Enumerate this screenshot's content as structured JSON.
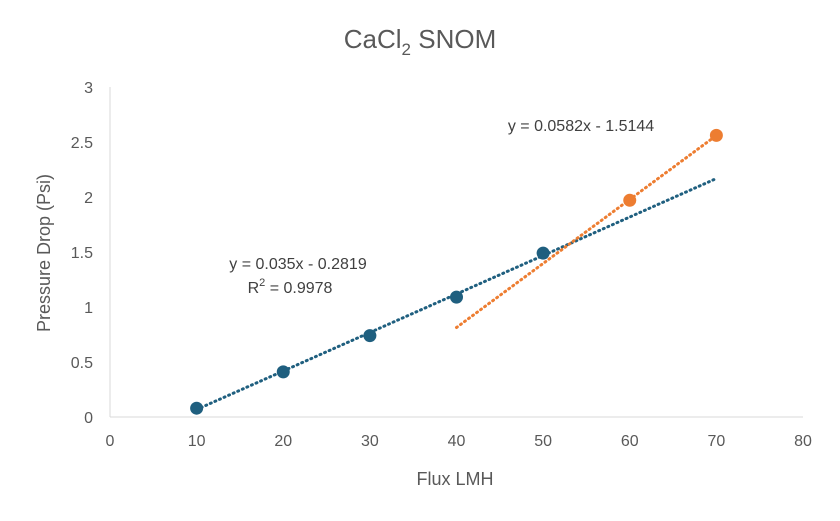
{
  "chart_data": {
    "type": "scatter",
    "title_main": "CaCl",
    "title_sub": "2",
    "title_rest": " SNOM",
    "xlabel": "Flux LMH",
    "ylabel": "Pressure Drop (Psi)",
    "xlim": [
      0,
      80
    ],
    "ylim": [
      0,
      3
    ],
    "x_ticks": [
      0,
      10,
      20,
      30,
      40,
      50,
      60,
      70,
      80
    ],
    "y_ticks": [
      0,
      0.5,
      1,
      1.5,
      2,
      2.5,
      3
    ],
    "x_tick_labels": [
      "0",
      "10",
      "20",
      "30",
      "40",
      "50",
      "60",
      "70",
      "80"
    ],
    "y_tick_labels": [
      "0",
      "0.5",
      "1",
      "1.5",
      "2",
      "2.5",
      "3"
    ],
    "grid": false,
    "series": [
      {
        "color": "#1f5f7f",
        "x": [
          10,
          20,
          30,
          40,
          50
        ],
        "y": [
          0.08,
          0.41,
          0.74,
          1.09,
          1.49
        ],
        "trendline": {
          "slope": 0.035,
          "intercept": -0.2819,
          "x_range": [
            10,
            70
          ]
        },
        "equation": "y = 0.035x - 0.2819",
        "r2_prefix": "R",
        "r2_sup": "2",
        "r2_suffix": " = 0.9978"
      },
      {
        "color": "#ed7d31",
        "x": [
          60,
          70
        ],
        "y": [
          1.97,
          2.56
        ],
        "trendline": {
          "slope": 0.0582,
          "intercept": -1.5144,
          "x_range": [
            40,
            70
          ]
        },
        "equation": "y = 0.0582x - 1.5144"
      }
    ]
  }
}
